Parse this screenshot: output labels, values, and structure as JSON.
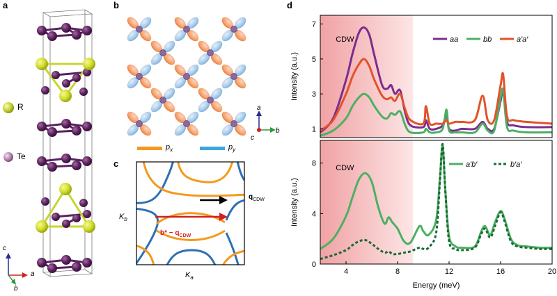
{
  "panels": {
    "a": "a",
    "b": "b",
    "c": "c",
    "d": "d"
  },
  "panel_a": {
    "legend": [
      {
        "label": "R",
        "color": "#c6d630"
      },
      {
        "label": "Te",
        "color": "#b889b5"
      }
    ],
    "axes": {
      "c": "c",
      "a": "a",
      "b": "b"
    }
  },
  "panel_b": {
    "axes": {
      "a": "a",
      "b": "b",
      "c": "c"
    },
    "legend": [
      {
        "label": "p",
        "sub": "x",
        "color": "#f39a1e"
      },
      {
        "label": "p",
        "sub": "y",
        "color": "#3ba7e0"
      }
    ]
  },
  "panel_c": {
    "q_label": "q",
    "q_sub": "CDW",
    "bq_label": "b* − q",
    "bq_sub": "CDW",
    "kb": "K",
    "kb_sub": "b",
    "ka": "K",
    "ka_sub": "a"
  },
  "chart_data": [
    {
      "type": "line",
      "title": "",
      "xlabel": "Energy (meV)",
      "ylabel": "Intensity (a.u.)",
      "xlim": [
        2,
        20
      ],
      "ylim": [
        0.5,
        7.5
      ],
      "yticks": [
        1,
        3,
        5,
        7
      ],
      "shaded_region_label": "CDW",
      "shaded_region_x": [
        2,
        9.2
      ],
      "legend_position": "top-right",
      "series": [
        {
          "name": "aa",
          "color": "#7b2d8e",
          "x": [
            2,
            3,
            4,
            4.5,
            5,
            5.4,
            5.8,
            6.2,
            6.8,
            7.2,
            7.5,
            7.8,
            8.2,
            8.6,
            9,
            10,
            10.2,
            10.5,
            11,
            11.5,
            11.8,
            12,
            12.5,
            13,
            14,
            14.6,
            15,
            15.5,
            16,
            16.2,
            16.5,
            17,
            18,
            20
          ],
          "y": [
            0.8,
            1.6,
            3.8,
            5.3,
            6.5,
            6.8,
            6.4,
            5.2,
            3.5,
            3.3,
            3.5,
            3.0,
            3.2,
            1.9,
            1.2,
            1.1,
            1.5,
            1.0,
            1.0,
            1.2,
            1.8,
            1.0,
            0.9,
            1.0,
            1.0,
            1.4,
            1.0,
            1.0,
            2.6,
            3.2,
            1.4,
            1.2,
            1.1,
            1.1
          ]
        },
        {
          "name": "bb",
          "color": "#4caf63",
          "x": [
            2,
            3,
            4,
            4.5,
            5,
            5.4,
            5.8,
            6.2,
            6.8,
            7.2,
            7.5,
            7.8,
            8.2,
            8.6,
            9,
            10,
            10.2,
            10.5,
            11,
            11.5,
            11.8,
            12,
            12.5,
            13,
            14,
            14.6,
            15,
            15.5,
            16,
            16.2,
            16.5,
            17,
            18,
            20
          ],
          "y": [
            0.6,
            0.9,
            1.6,
            2.3,
            2.8,
            3.0,
            2.8,
            2.3,
            1.7,
            1.6,
            1.9,
            1.8,
            2.0,
            1.2,
            0.8,
            0.8,
            1.0,
            0.8,
            0.8,
            1.0,
            2.1,
            0.9,
            0.8,
            0.8,
            0.8,
            1.3,
            0.9,
            0.9,
            2.8,
            3.2,
            1.1,
            0.9,
            0.8,
            0.8
          ]
        },
        {
          "name": "a′a′",
          "color": "#e3522a",
          "x": [
            2,
            3,
            4,
            4.5,
            5,
            5.4,
            5.8,
            6.2,
            6.8,
            7.2,
            7.5,
            7.8,
            8.2,
            8.6,
            9,
            10,
            10.2,
            10.5,
            11,
            11.5,
            11.8,
            12,
            12.5,
            13,
            14,
            14.6,
            15,
            15.5,
            16,
            16.2,
            16.5,
            17,
            18,
            20
          ],
          "y": [
            0.9,
            1.5,
            3.0,
            4.0,
            4.7,
            5.0,
            4.6,
            3.8,
            2.9,
            2.7,
            2.8,
            2.6,
            3.0,
            2.1,
            1.5,
            1.3,
            2.3,
            1.3,
            1.3,
            1.3,
            1.5,
            1.3,
            1.4,
            1.4,
            1.5,
            2.9,
            1.5,
            1.5,
            3.5,
            4.1,
            1.7,
            1.5,
            1.4,
            1.3
          ]
        }
      ]
    },
    {
      "type": "line",
      "title": "",
      "xlabel": "Energy (meV)",
      "ylabel": "Intensity (a.u.)",
      "xlim": [
        2,
        20
      ],
      "ylim": [
        0,
        9.8
      ],
      "yticks": [
        0,
        4,
        8
      ],
      "xticks": [
        4,
        8,
        12,
        16,
        20
      ],
      "shaded_region_label": "CDW",
      "shaded_region_x": [
        2,
        9.2
      ],
      "legend_position": "top-right",
      "series": [
        {
          "name": "a′b′",
          "color": "#4caf63",
          "style": "solid",
          "x": [
            2,
            3,
            4,
            4.5,
            5,
            5.5,
            6,
            6.5,
            7,
            7.3,
            7.6,
            8,
            8.5,
            9,
            9.7,
            10,
            10.4,
            11,
            11.3,
            11.5,
            11.7,
            12,
            12.5,
            13,
            14,
            14.5,
            14.8,
            15.2,
            15.6,
            16,
            16.3,
            16.8,
            17.3,
            18,
            19,
            20
          ],
          "y": [
            1.2,
            2.0,
            3.8,
            5.3,
            6.7,
            7.2,
            6.5,
            4.5,
            3.2,
            3.7,
            3.3,
            2.8,
            1.8,
            1.7,
            3.0,
            2.6,
            2.3,
            3.5,
            7.0,
            9.4,
            6.0,
            2.2,
            1.4,
            1.3,
            1.4,
            2.6,
            3.0,
            2.3,
            3.4,
            4.2,
            3.6,
            2.0,
            1.5,
            1.4,
            1.3,
            1.3
          ]
        },
        {
          "name": "b′a′",
          "color": "#1a6a34",
          "style": "dashed",
          "x": [
            2,
            3,
            4,
            4.5,
            5,
            5.5,
            6,
            6.5,
            7,
            7.3,
            7.6,
            8,
            8.5,
            9,
            9.7,
            10,
            10.4,
            11,
            11.3,
            11.5,
            11.7,
            12,
            12.5,
            13,
            14,
            14.5,
            14.8,
            15.2,
            15.6,
            16,
            16.3,
            16.8,
            17.3,
            18,
            19,
            20
          ],
          "y": [
            0.4,
            0.7,
            1.1,
            1.5,
            1.8,
            1.9,
            1.6,
            1.2,
            0.9,
            1.0,
            0.8,
            0.8,
            0.9,
            1.0,
            1.3,
            1.2,
            1.3,
            2.5,
            6.8,
            9.5,
            6.0,
            1.8,
            1.2,
            1.1,
            1.3,
            2.4,
            2.8,
            2.1,
            3.1,
            4.1,
            3.4,
            1.8,
            1.4,
            1.3,
            1.2,
            1.2
          ]
        }
      ]
    }
  ]
}
